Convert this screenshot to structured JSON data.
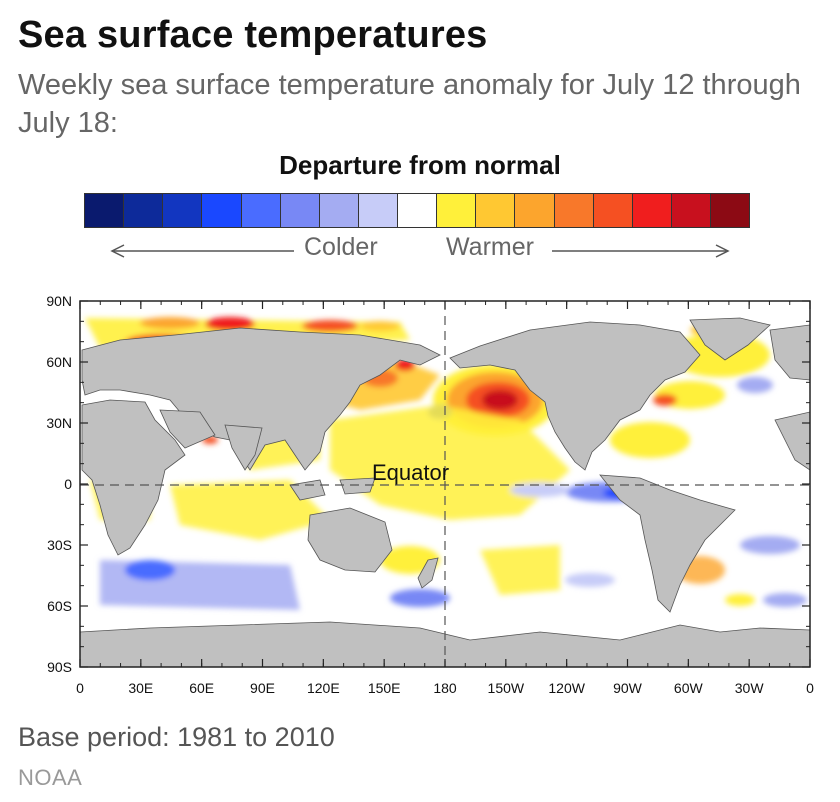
{
  "header": {
    "title": "Sea surface temperatures",
    "subtitle": "Weekly sea surface temperature anomaly for July 12 through July 18:"
  },
  "legend": {
    "title": "Departure from normal",
    "colder_label": "Colder",
    "warmer_label": "Warmer",
    "colors": [
      "#0a1a6e",
      "#0d2a9a",
      "#1236c0",
      "#1a48ff",
      "#4a6cff",
      "#7888f5",
      "#a4acf2",
      "#c7ccf8",
      "#ffffff",
      "#fff03a",
      "#ffc832",
      "#fca52d",
      "#f8782a",
      "#f55022",
      "#f01e1e",
      "#c8101e",
      "#8c0a14"
    ]
  },
  "map": {
    "lat_ticks": [
      "90N",
      "60N",
      "30N",
      "0",
      "30S",
      "60S",
      "90S"
    ],
    "lon_ticks": [
      "0",
      "30E",
      "60E",
      "90E",
      "120E",
      "150E",
      "180",
      "150W",
      "120W",
      "90W",
      "60W",
      "30W",
      "0"
    ],
    "equator_label": "Equator",
    "land_color": "#c0c0c0"
  },
  "footer": {
    "base_period": "Base period: 1981 to 2010",
    "source": "NOAA"
  }
}
